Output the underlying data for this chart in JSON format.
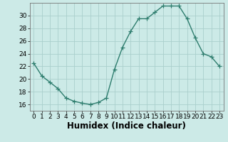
{
  "x": [
    0,
    1,
    2,
    3,
    4,
    5,
    6,
    7,
    8,
    9,
    10,
    11,
    12,
    13,
    14,
    15,
    16,
    17,
    18,
    19,
    20,
    21,
    22,
    23
  ],
  "y": [
    22.5,
    20.5,
    19.5,
    18.5,
    17.0,
    16.5,
    16.2,
    16.0,
    16.3,
    17.0,
    21.5,
    25.0,
    27.5,
    29.5,
    29.5,
    30.5,
    31.5,
    31.5,
    31.5,
    29.5,
    26.5,
    24.0,
    23.5,
    22.0
  ],
  "line_color": "#2e7d6e",
  "marker": "+",
  "marker_size": 4,
  "marker_linewidth": 0.9,
  "xlabel": "Humidex (Indice chaleur)",
  "xlim": [
    -0.5,
    23.5
  ],
  "ylim": [
    15.0,
    32.0
  ],
  "yticks": [
    16,
    18,
    20,
    22,
    24,
    26,
    28,
    30
  ],
  "xticks": [
    0,
    1,
    2,
    3,
    4,
    5,
    6,
    7,
    8,
    9,
    10,
    11,
    12,
    13,
    14,
    15,
    16,
    17,
    18,
    19,
    20,
    21,
    22,
    23
  ],
  "background_color": "#cceae7",
  "grid_color": "#aacfcc",
  "tick_fontsize": 6.5,
  "xlabel_fontsize": 8.5,
  "line_width": 1.0,
  "spine_color": "#777777"
}
